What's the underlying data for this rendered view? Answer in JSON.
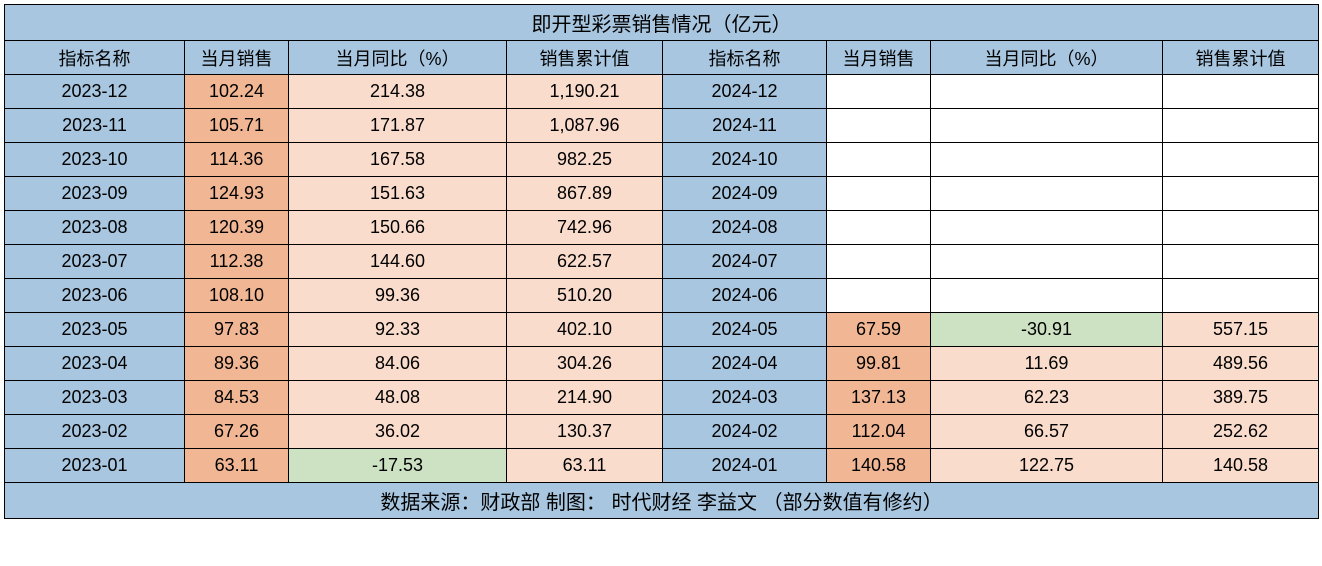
{
  "colors": {
    "blue": "#a8c6df",
    "peach_dark": "#f1b795",
    "peach_light": "#f9dccc",
    "green": "#cce2c3",
    "white": "#ffffff"
  },
  "title": "即开型彩票销售情况（亿元）",
  "footer": "数据来源：财政部  制图： 时代财经 李益文 （部分数值有修约）",
  "headers": [
    "指标名称",
    "当月销售",
    "当月同比（%）",
    "销售累计值",
    "指标名称",
    "当月销售",
    "当月同比（%）",
    "销售累计值"
  ],
  "rows": [
    {
      "left_date": "2023-12",
      "left_sales": "102.24",
      "left_yoy": "214.38",
      "left_cum": "1,190.21",
      "right_date": "2024-12",
      "right_sales": "",
      "right_yoy": "",
      "right_cum": "",
      "left_yoy_color": "peach_light",
      "right_has_data": false
    },
    {
      "left_date": "2023-11",
      "left_sales": "105.71",
      "left_yoy": "171.87",
      "left_cum": "1,087.96",
      "right_date": "2024-11",
      "right_sales": "",
      "right_yoy": "",
      "right_cum": "",
      "left_yoy_color": "peach_light",
      "right_has_data": false
    },
    {
      "left_date": "2023-10",
      "left_sales": "114.36",
      "left_yoy": "167.58",
      "left_cum": "982.25",
      "right_date": "2024-10",
      "right_sales": "",
      "right_yoy": "",
      "right_cum": "",
      "left_yoy_color": "peach_light",
      "right_has_data": false
    },
    {
      "left_date": "2023-09",
      "left_sales": "124.93",
      "left_yoy": "151.63",
      "left_cum": "867.89",
      "right_date": "2024-09",
      "right_sales": "",
      "right_yoy": "",
      "right_cum": "",
      "left_yoy_color": "peach_light",
      "right_has_data": false
    },
    {
      "left_date": "2023-08",
      "left_sales": "120.39",
      "left_yoy": "150.66",
      "left_cum": "742.96",
      "right_date": "2024-08",
      "right_sales": "",
      "right_yoy": "",
      "right_cum": "",
      "left_yoy_color": "peach_light",
      "right_has_data": false
    },
    {
      "left_date": "2023-07",
      "left_sales": "112.38",
      "left_yoy": "144.60",
      "left_cum": "622.57",
      "right_date": "2024-07",
      "right_sales": "",
      "right_yoy": "",
      "right_cum": "",
      "left_yoy_color": "peach_light",
      "right_has_data": false
    },
    {
      "left_date": "2023-06",
      "left_sales": "108.10",
      "left_yoy": "99.36",
      "left_cum": "510.20",
      "right_date": "2024-06",
      "right_sales": "",
      "right_yoy": "",
      "right_cum": "",
      "left_yoy_color": "peach_light",
      "right_has_data": false
    },
    {
      "left_date": "2023-05",
      "left_sales": "97.83",
      "left_yoy": "92.33",
      "left_cum": "402.10",
      "right_date": "2024-05",
      "right_sales": "67.59",
      "right_yoy": "-30.91",
      "right_cum": "557.15",
      "left_yoy_color": "peach_light",
      "right_has_data": true,
      "right_yoy_color": "green"
    },
    {
      "left_date": "2023-04",
      "left_sales": "89.36",
      "left_yoy": "84.06",
      "left_cum": "304.26",
      "right_date": "2024-04",
      "right_sales": "99.81",
      "right_yoy": "11.69",
      "right_cum": "489.56",
      "left_yoy_color": "peach_light",
      "right_has_data": true,
      "right_yoy_color": "peach_light"
    },
    {
      "left_date": "2023-03",
      "left_sales": "84.53",
      "left_yoy": "48.08",
      "left_cum": "214.90",
      "right_date": "2024-03",
      "right_sales": "137.13",
      "right_yoy": "62.23",
      "right_cum": "389.75",
      "left_yoy_color": "peach_light",
      "right_has_data": true,
      "right_yoy_color": "peach_light"
    },
    {
      "left_date": "2023-02",
      "left_sales": "67.26",
      "left_yoy": "36.02",
      "left_cum": "130.37",
      "right_date": "2024-02",
      "right_sales": "112.04",
      "right_yoy": "66.57",
      "right_cum": "252.62",
      "left_yoy_color": "peach_light",
      "right_has_data": true,
      "right_yoy_color": "peach_light"
    },
    {
      "left_date": "2023-01",
      "left_sales": "63.11",
      "left_yoy": "-17.53",
      "left_cum": "63.11",
      "right_date": "2024-01",
      "right_sales": "140.58",
      "right_yoy": "122.75",
      "right_cum": "140.58",
      "left_yoy_color": "green",
      "right_has_data": true,
      "right_yoy_color": "peach_light"
    }
  ]
}
